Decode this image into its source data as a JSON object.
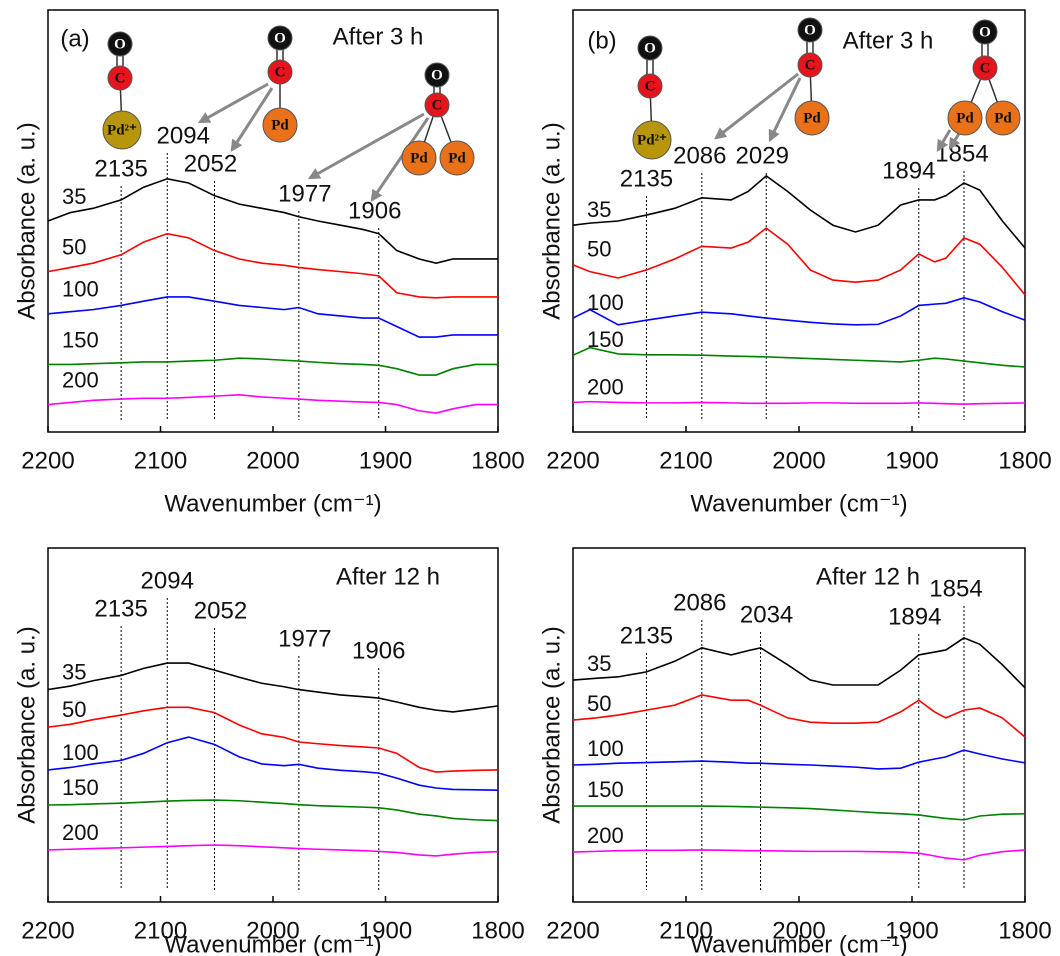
{
  "chart_data": [
    {
      "type": "line",
      "panel_label": "(a)",
      "annotation": "After 3 h",
      "x_label": "Wavenumber (cm⁻¹)",
      "y_label": "Absorbance (a. u.)",
      "xlim": [
        2200,
        1800
      ],
      "xticks": [
        2200,
        2100,
        2000,
        1900,
        1800
      ],
      "ylim": [
        0,
        100
      ],
      "x": [
        2200,
        2180,
        2160,
        2135,
        2115,
        2094,
        2075,
        2052,
        2030,
        2010,
        1990,
        1977,
        1960,
        1940,
        1920,
        1906,
        1890,
        1870,
        1855,
        1840,
        1820,
        1800
      ],
      "series": [
        {
          "name": "35",
          "color": "#000000",
          "values": [
            50,
            52,
            53,
            55,
            58,
            60,
            59,
            56,
            54,
            53,
            52,
            51,
            50,
            49,
            48,
            47,
            43,
            41,
            40,
            41,
            41,
            41
          ]
        },
        {
          "name": "50",
          "color": "#ff0000",
          "values": [
            38,
            39,
            40,
            42,
            45,
            47,
            46,
            43,
            41,
            40,
            39.5,
            39,
            38.5,
            38,
            37.5,
            37,
            33,
            32,
            31.8,
            32,
            32,
            32
          ]
        },
        {
          "name": "100",
          "color": "#0000ff",
          "values": [
            28,
            28.5,
            29,
            30,
            31,
            32,
            32,
            31,
            30,
            29.5,
            29,
            29.5,
            28,
            27.5,
            27,
            27,
            25,
            22.5,
            22.5,
            23,
            23,
            23
          ]
        },
        {
          "name": "150",
          "color": "#008000",
          "values": [
            16,
            16,
            16.2,
            16.4,
            16.6,
            16.6,
            16.8,
            17,
            17.5,
            17.3,
            17,
            16.8,
            16.5,
            16.2,
            16,
            15.8,
            15,
            13.5,
            13.5,
            15,
            16,
            16
          ]
        },
        {
          "name": "200",
          "color": "#ff00ff",
          "values": [
            6.5,
            7,
            7.5,
            7.8,
            8,
            8,
            8.2,
            8.5,
            8.8,
            8.3,
            8,
            7.8,
            7.5,
            7.3,
            7.1,
            7,
            6.5,
            5,
            4.5,
            5.5,
            6.5,
            6.5
          ]
        }
      ],
      "peaks": [
        2135,
        2094,
        2052,
        1977,
        1906
      ],
      "insets": [
        [
          "O",
          "C",
          "Pd²⁺"
        ],
        [
          "O",
          "C",
          "Pd"
        ],
        [
          "O",
          "C",
          "Pd",
          "Pd"
        ]
      ]
    },
    {
      "type": "line",
      "panel_label": "(b)",
      "annotation": "After 3 h",
      "x_label": "Wavenumber (cm⁻¹)",
      "y_label": "Absorbance (a. u.)",
      "xlim": [
        2200,
        1800
      ],
      "xticks": [
        2200,
        2100,
        2000,
        1900,
        1800
      ],
      "ylim": [
        0,
        100
      ],
      "x": [
        2200,
        2185,
        2160,
        2135,
        2110,
        2086,
        2060,
        2045,
        2029,
        2010,
        1990,
        1970,
        1950,
        1930,
        1910,
        1894,
        1880,
        1870,
        1854,
        1840,
        1820,
        1800
      ],
      "series": [
        {
          "name": "35",
          "color": "#000000",
          "values": [
            49,
            49.5,
            50,
            51.4,
            53,
            55.5,
            55,
            57,
            60.7,
            57,
            52.6,
            49,
            47.4,
            49,
            53.8,
            55,
            55,
            56,
            59,
            57.3,
            50,
            43.6
          ]
        },
        {
          "name": "50",
          "color": "#ff0000",
          "values": [
            39.6,
            38,
            36.5,
            38.4,
            41,
            44,
            43.6,
            45,
            48.3,
            44.5,
            38.4,
            36,
            35.5,
            36,
            38.4,
            42.2,
            40.3,
            41.2,
            46,
            44.5,
            39,
            32.5
          ]
        },
        {
          "name": "100",
          "color": "#0000ff",
          "values": [
            27,
            29,
            25.4,
            26.5,
            27.5,
            28.4,
            28,
            27.5,
            27,
            26.5,
            26,
            25.6,
            25.4,
            25.5,
            27.5,
            30,
            30.3,
            30.5,
            31.8,
            30.8,
            28.5,
            26.5
          ]
        },
        {
          "name": "150",
          "color": "#008000",
          "values": [
            18.2,
            20,
            18.5,
            18.3,
            18.3,
            18.2,
            18,
            17.9,
            17.8,
            17.6,
            17.4,
            17.2,
            17,
            16.8,
            16.6,
            17,
            17.5,
            17.3,
            16.8,
            16.4,
            15.8,
            15.4
          ]
        },
        {
          "name": "200",
          "color": "#ff00ff",
          "values": [
            7,
            7.2,
            7,
            6.9,
            6.9,
            7,
            6.9,
            6.8,
            6.8,
            6.8,
            6.9,
            6.9,
            6.8,
            6.8,
            6.8,
            6.9,
            6.8,
            6.7,
            6.6,
            6.7,
            6.8,
            6.9
          ]
        }
      ],
      "peaks": [
        2135,
        2086,
        2029,
        1894,
        1854
      ],
      "insets": [
        [
          "O",
          "C",
          "Pd²⁺"
        ],
        [
          "O",
          "C",
          "Pd"
        ],
        [
          "O",
          "C",
          "Pd",
          "Pd"
        ]
      ]
    },
    {
      "type": "line",
      "annotation": "After 12 h",
      "x_label": "Wavenumber (cm⁻¹)",
      "y_label": "Absorbance (a. u.)",
      "xlim": [
        2200,
        1800
      ],
      "xticks": [
        2200,
        2100,
        2000,
        1900,
        1800
      ],
      "ylim": [
        0,
        100
      ],
      "x": [
        2200,
        2180,
        2160,
        2135,
        2115,
        2094,
        2075,
        2052,
        2030,
        2010,
        1990,
        1977,
        1960,
        1940,
        1920,
        1906,
        1890,
        1870,
        1855,
        1840,
        1820,
        1800
      ],
      "series": [
        {
          "name": "35",
          "color": "#000000",
          "values": [
            60,
            61,
            62.5,
            64,
            66,
            67.5,
            67.5,
            65.5,
            63.5,
            61.8,
            60.8,
            60,
            59.3,
            58.5,
            58,
            57.6,
            56.5,
            55,
            54.2,
            53.7,
            54.5,
            55.4
          ]
        },
        {
          "name": "50",
          "color": "#ff0000",
          "values": [
            49.4,
            50.2,
            51.5,
            52.8,
            54,
            55,
            55,
            53.5,
            50,
            47.5,
            46.5,
            45.2,
            44.7,
            44.2,
            43.8,
            43.5,
            42,
            38,
            36.7,
            37,
            37.2,
            37.3
          ]
        },
        {
          "name": "100",
          "color": "#0000ff",
          "values": [
            37.3,
            38,
            39,
            40,
            42,
            45,
            46.6,
            44.5,
            41,
            39,
            38.5,
            38.9,
            37.8,
            37.2,
            36.8,
            36.4,
            35,
            33,
            32.2,
            31.8,
            31.7,
            31.6
          ]
        },
        {
          "name": "150",
          "color": "#008000",
          "values": [
            27.4,
            27.5,
            27.7,
            27.9,
            28.2,
            28.5,
            28.7,
            28.8,
            28.6,
            28.2,
            27.8,
            27.5,
            27.2,
            27,
            26.8,
            26.6,
            26,
            24.8,
            24.3,
            23.6,
            23.2,
            23
          ]
        },
        {
          "name": "200",
          "color": "#ff00ff",
          "values": [
            14.7,
            14.9,
            15.1,
            15.3,
            15.5,
            15.7,
            15.9,
            16.1,
            15.9,
            15.6,
            15.3,
            15.1,
            14.9,
            14.7,
            14.5,
            14.3,
            14,
            13.3,
            13,
            13.5,
            14,
            14.2
          ]
        }
      ],
      "peaks": [
        2135,
        2094,
        2052,
        1977,
        1906
      ]
    },
    {
      "type": "line",
      "annotation": "After 12 h",
      "x_label": "Wavenumber (cm⁻¹)",
      "y_label": "Absorbance (a. u.)",
      "xlim": [
        2200,
        1800
      ],
      "xticks": [
        2200,
        2100,
        2000,
        1900,
        1800
      ],
      "ylim": [
        0,
        100
      ],
      "x": [
        2200,
        2180,
        2160,
        2135,
        2110,
        2086,
        2060,
        2045,
        2034,
        2010,
        1990,
        1970,
        1950,
        1930,
        1910,
        1894,
        1880,
        1870,
        1854,
        1840,
        1820,
        1800
      ],
      "series": [
        {
          "name": "35",
          "color": "#000000",
          "values": [
            62.7,
            63.2,
            63.6,
            65,
            68,
            71.8,
            69.8,
            71,
            71.8,
            67,
            62.7,
            61.3,
            61.3,
            61.3,
            65.5,
            69.8,
            70.6,
            71.2,
            74.6,
            72.8,
            67,
            60.5
          ]
        },
        {
          "name": "50",
          "color": "#ff0000",
          "values": [
            51.4,
            52,
            52.8,
            54.2,
            55.6,
            58.5,
            57,
            57,
            55.6,
            52,
            50.8,
            50.5,
            50.5,
            50.8,
            53.7,
            57,
            53.7,
            52,
            54.2,
            54.8,
            52,
            46.6
          ]
        },
        {
          "name": "100",
          "color": "#0000ff",
          "values": [
            38.7,
            38.9,
            39.2,
            39.4,
            39.6,
            39.8,
            39.5,
            39.2,
            39.2,
            38.9,
            38.7,
            38.4,
            38.1,
            37.6,
            37.8,
            39.5,
            40.4,
            41,
            42.9,
            41.8,
            40.4,
            39.3
          ]
        },
        {
          "name": "150",
          "color": "#008000",
          "values": [
            27.1,
            27.1,
            27.1,
            27.1,
            27.1,
            27.1,
            27,
            26.9,
            26.8,
            26.6,
            26.4,
            26,
            25.6,
            25.2,
            24.9,
            24.6,
            24,
            23.6,
            23.2,
            24.3,
            24.8,
            24.9
          ]
        },
        {
          "name": "200",
          "color": "#ff00ff",
          "values": [
            14.1,
            14.3,
            14.5,
            14.6,
            14.6,
            14.7,
            14.6,
            14.5,
            14.5,
            14.4,
            14.3,
            14.3,
            14.3,
            14.2,
            14.1,
            13.8,
            13,
            12.4,
            11.9,
            13.2,
            14.2,
            14.7
          ]
        }
      ],
      "peaks": [
        2135,
        2086,
        2034,
        1894,
        1854
      ]
    }
  ]
}
